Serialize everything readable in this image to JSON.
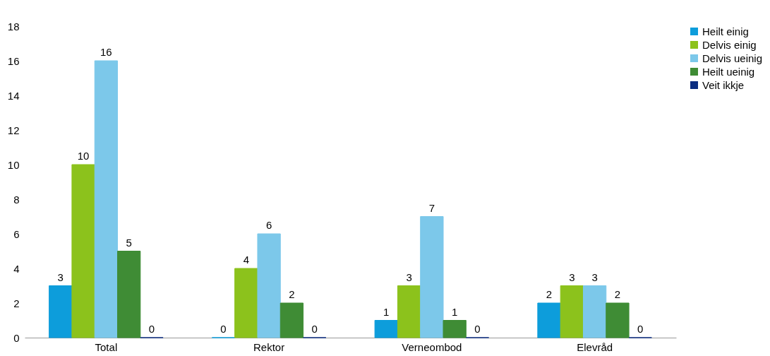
{
  "chart_data": {
    "type": "bar",
    "categories": [
      "Total",
      "Rektor",
      "Verneombod",
      "Elevråd"
    ],
    "series": [
      {
        "name": "Heilt einig",
        "color": "#0d9ddb",
        "values": [
          3,
          0,
          1,
          2
        ]
      },
      {
        "name": "Delvis einig",
        "color": "#8cc21c",
        "values": [
          10,
          4,
          3,
          3
        ]
      },
      {
        "name": "Delvis ueinig",
        "color": "#7cc8ea",
        "values": [
          16,
          6,
          7,
          3
        ]
      },
      {
        "name": "Heilt ueinig",
        "color": "#3f8c35",
        "values": [
          5,
          2,
          1,
          2
        ]
      },
      {
        "name": "Veit ikkje",
        "color": "#0b2d80",
        "values": [
          0,
          0,
          0,
          0
        ]
      }
    ],
    "ylim": [
      0,
      18
    ],
    "yticks": [
      0,
      2,
      4,
      6,
      8,
      10,
      12,
      14,
      16,
      18
    ],
    "grid": false,
    "legend": "right",
    "data_labels": true
  }
}
